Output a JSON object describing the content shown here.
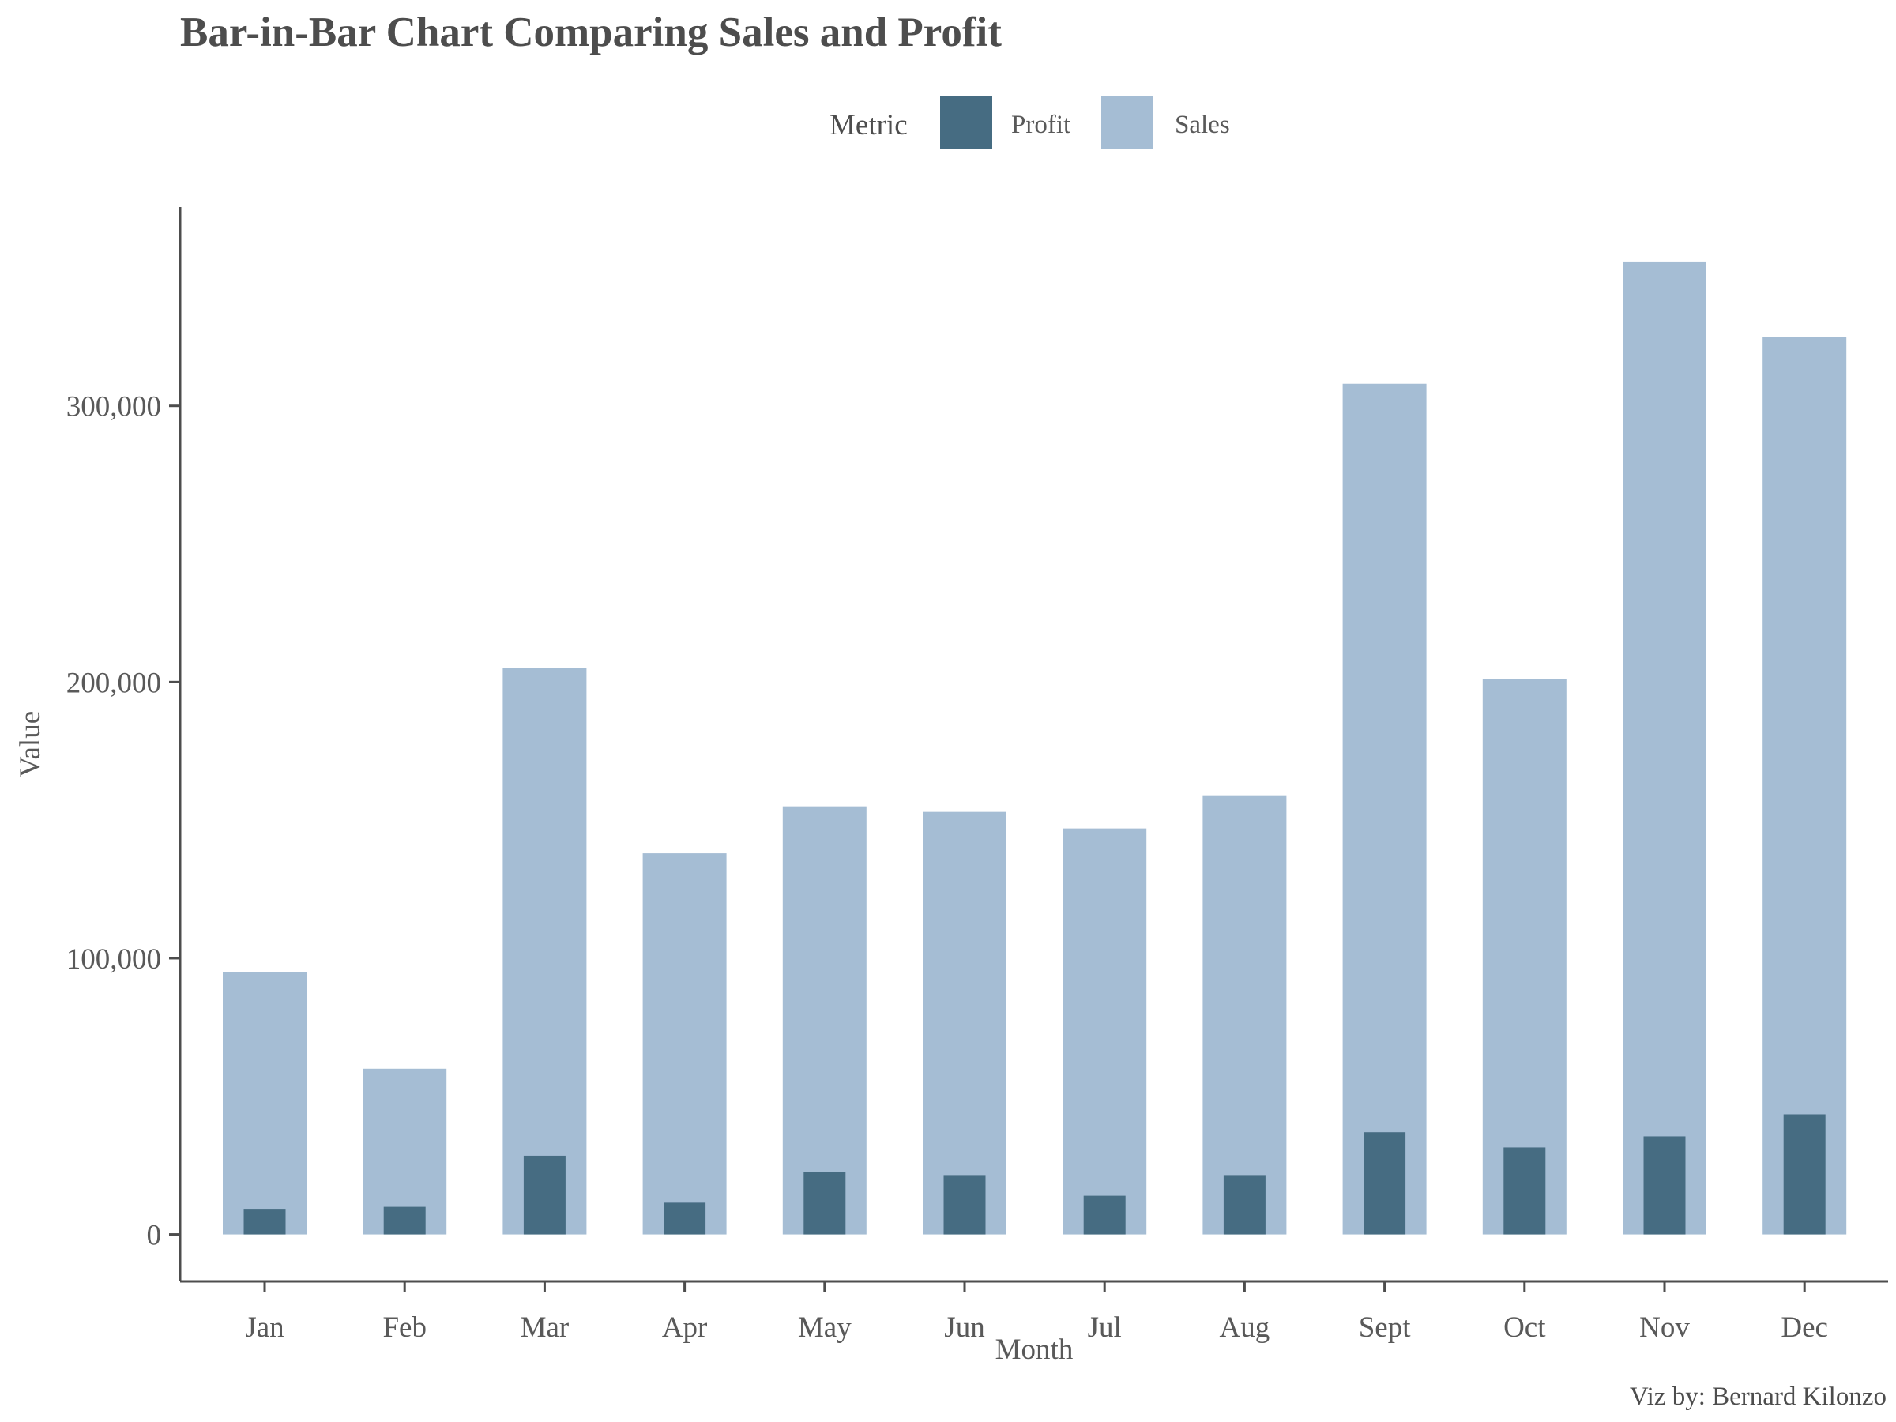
{
  "chart_data": {
    "type": "bar",
    "title": "Bar-in-Bar Chart Comparing Sales and Profit",
    "xlabel": "Month",
    "ylabel": "Value",
    "ylim": [
      -17000,
      372000
    ],
    "yticks": [
      0,
      100000,
      200000,
      300000
    ],
    "ytick_labels": [
      "0",
      "100,000",
      "200,000",
      "300,000"
    ],
    "categories": [
      "Jan",
      "Feb",
      "Mar",
      "Apr",
      "May",
      "Jun",
      "Jul",
      "Aug",
      "Sept",
      "Oct",
      "Nov",
      "Dec"
    ],
    "legend": {
      "title": "Metric",
      "placement": "top"
    },
    "series": [
      {
        "name": "Sales",
        "color": "#a5bdd4",
        "values": [
          95000,
          60000,
          205000,
          138000,
          155000,
          153000,
          147000,
          159000,
          308000,
          201000,
          352000,
          325000
        ]
      },
      {
        "name": "Profit",
        "color": "#466c82",
        "values": [
          9000,
          10000,
          28500,
          11500,
          22500,
          21500,
          14000,
          21500,
          37000,
          31500,
          35500,
          43500
        ]
      }
    ],
    "grid": false,
    "caption": "Viz by: Bernard Kilonzo"
  }
}
